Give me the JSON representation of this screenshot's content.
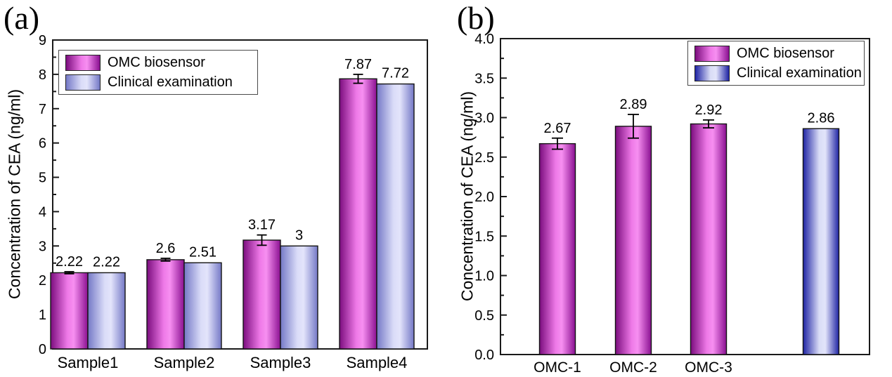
{
  "figure": {
    "background": "#ffffff",
    "panels": [
      {
        "label": "(a)"
      },
      {
        "label": "(b)"
      }
    ]
  },
  "colors": {
    "omc_edge": "#7b0d7e",
    "omc_mid": "#ee79e7",
    "omc_hi": "#f78ff1",
    "omc_edge2": "#8a1091",
    "clinical_a_edge": "#7478c6",
    "clinical_a_mid": "#dadcf8",
    "clinical_a_hi": "#e3e4fb",
    "clinical_b_edge": "#1f24a4",
    "clinical_b_mid": "#d9dcf6",
    "clinical_b_hi": "#e2e4fa",
    "bar_outline": "#141414",
    "axis": "#1a1a1a",
    "text": "#000000",
    "legend_border": "#4a4a4a"
  },
  "chart_data": [
    {
      "type": "bar",
      "panel": "a",
      "title": "",
      "ylabel": "Concentration of CEA (ng/ml)",
      "xlabel": "",
      "ylim": [
        0,
        9
      ],
      "ytick_step": 1,
      "ytick_minor_step": 0.5,
      "ytick_decimals": 0,
      "grid": false,
      "legend_position": "top-left",
      "categories": [
        "Sample1",
        "Sample2",
        "Sample3",
        "Sample4"
      ],
      "series": [
        {
          "name": "OMC biosensor",
          "color_key": "omc",
          "values": [
            2.22,
            2.6,
            3.17,
            7.87
          ],
          "value_labels": [
            "2.22",
            "2.6",
            "3.17",
            "7.87"
          ],
          "errors": [
            0.03,
            0.04,
            0.15,
            0.13
          ]
        },
        {
          "name": "Clinical examination",
          "color_key": "clinical_a",
          "values": [
            2.22,
            2.51,
            3,
            7.72
          ],
          "value_labels": [
            "2.22",
            "2.51",
            "3",
            "7.72"
          ],
          "errors": [
            0,
            0,
            0,
            0
          ]
        }
      ]
    },
    {
      "type": "bar",
      "panel": "b",
      "title": "",
      "ylabel": "Concentration of CEA (ng/ml)",
      "xlabel": "",
      "ylim": [
        0,
        4
      ],
      "ytick_step": 0.5,
      "ytick_minor_step": 0.25,
      "ytick_decimals": 1,
      "grid": false,
      "legend_position": "top-right",
      "legend": [
        "OMC biosensor",
        "Clinical examination"
      ],
      "categories": [
        "OMC-1",
        "OMC-2",
        "OMC-3",
        ""
      ],
      "bars": [
        {
          "category": "OMC-1",
          "series": "OMC biosensor",
          "color_key": "omc",
          "value": 2.67,
          "value_label": "2.67",
          "error": 0.07
        },
        {
          "category": "OMC-2",
          "series": "OMC biosensor",
          "color_key": "omc",
          "value": 2.89,
          "value_label": "2.89",
          "error": 0.15
        },
        {
          "category": "OMC-3",
          "series": "OMC biosensor",
          "color_key": "omc",
          "value": 2.92,
          "value_label": "2.92",
          "error": 0.05
        },
        {
          "category": "",
          "series": "Clinical examination",
          "color_key": "clinical_b",
          "value": 2.86,
          "value_label": "2.86",
          "error": 0
        }
      ]
    }
  ]
}
